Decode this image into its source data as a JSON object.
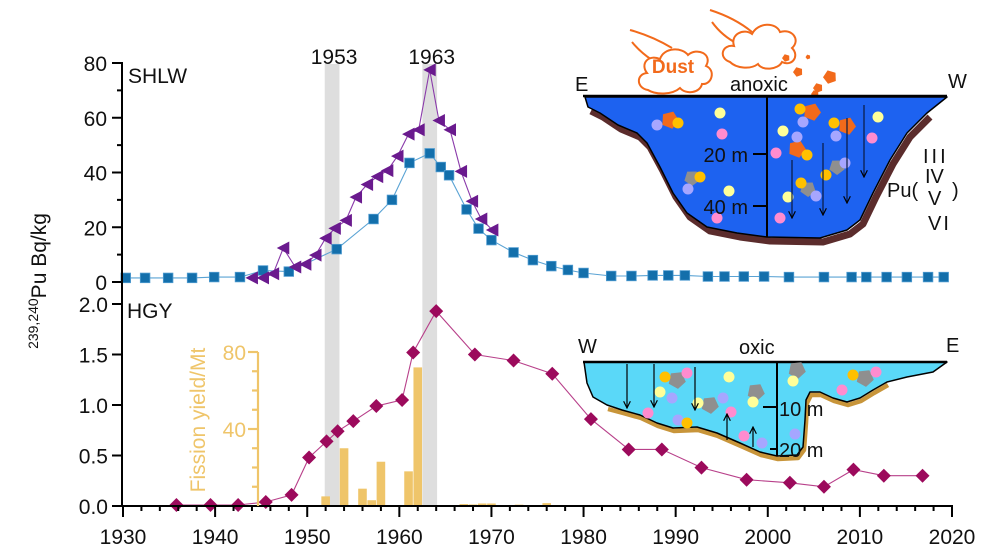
{
  "chart_data": [
    {
      "panel_label": "SHLW",
      "type": "line",
      "ylabel_sup": "239,240",
      "ylabel_main": "Pu Bq/kg",
      "xlim": [
        1930,
        2020
      ],
      "ylim": [
        0,
        80
      ],
      "yticks": [
        0,
        20,
        40,
        60,
        80
      ],
      "ytick_labels": [
        "0",
        "20",
        "40",
        "60",
        "80"
      ],
      "yminor": [
        10,
        30,
        50,
        70
      ],
      "grid": false,
      "bands": [
        {
          "label": "1953",
          "x_range": [
            1951.9,
            1953.5
          ],
          "color": "#dedede"
        },
        {
          "label": "1963",
          "x_range": [
            1962.5,
            1964.1
          ],
          "color": "#dedede"
        }
      ],
      "series": [
        {
          "name": "squares",
          "marker": "square",
          "color": "#136fab",
          "line_color": "#5aa3d4",
          "x": [
            1930.3,
            1932.4,
            1934.9,
            1937.5,
            1939.9,
            1942.7,
            1945.2,
            1948.0,
            1953.2,
            1957.2,
            1959.2,
            1961.1,
            1963.3,
            1964.5,
            1965.4,
            1967.3,
            1968.6,
            1970.0,
            1972.4,
            1974.5,
            1976.5,
            1978.3,
            1980.0,
            1983.0,
            1985.2,
            1987.5,
            1989.2,
            1991.0,
            1993.5,
            1995.3,
            1997.4,
            1999.6,
            2002.3,
            2006.1,
            2009.1,
            2010.7,
            2012.9,
            2015.1,
            2017.4,
            2019.1
          ],
          "y": [
            1.5,
            1.5,
            1.5,
            1.5,
            1.8,
            1.8,
            4.2,
            3.8,
            12,
            23,
            30,
            43.5,
            47,
            42,
            39,
            26.5,
            19.5,
            15.3,
            10.8,
            8,
            5.8,
            4.4,
            3.3,
            2.2,
            2.2,
            2.4,
            2.4,
            2.4,
            2.0,
            2.0,
            2.0,
            2.0,
            1.8,
            1.8,
            1.8,
            1.8,
            1.8,
            1.8,
            1.8,
            1.8
          ]
        },
        {
          "name": "triangles",
          "marker": "triangle-left",
          "color": "#6a1a8e",
          "line_color": "#8a3aaa",
          "x": [
            1944.0,
            1945.2,
            1946.3,
            1947.4,
            1948.7,
            1949.8,
            1950.9,
            1952.0,
            1953.0,
            1954.2,
            1955.3,
            1956.5,
            1957.6,
            1958.7,
            1959.8,
            1961.0,
            1962.1,
            1963.3,
            1964.3,
            1965.5,
            1966.7,
            1967.9,
            1968.9,
            1970.1
          ],
          "y": [
            1.5,
            1.5,
            3,
            12.4,
            5.5,
            6.5,
            9.8,
            16,
            19.6,
            22.5,
            31,
            35.6,
            38.5,
            40.7,
            46,
            54,
            55.6,
            77.5,
            59,
            55.6,
            40.4,
            29.5,
            23,
            19
          ]
        }
      ]
    },
    {
      "panel_label": "HGY",
      "type": "line",
      "xlim": [
        1930,
        2020
      ],
      "ylim": [
        0,
        2.0
      ],
      "xticks": [
        1930,
        1940,
        1950,
        1960,
        1970,
        1980,
        1990,
        2000,
        2010,
        2020
      ],
      "xtick_labels": [
        "1930",
        "1940",
        "1950",
        "1960",
        "1970",
        "1980",
        "1990",
        "2000",
        "2010",
        "2020"
      ],
      "xminor_step": 2,
      "yticks": [
        0,
        0.5,
        1.0,
        1.5,
        2.0
      ],
      "ytick_labels": [
        "0.0",
        "0.5",
        "1.0",
        "1.5",
        "2.0"
      ],
      "grid": false,
      "series": [
        {
          "name": "diamonds",
          "marker": "diamond",
          "color": "#9c0a5c",
          "line_color": "#b8408a",
          "x": [
            1935.8,
            1939.5,
            1942.5,
            1945.5,
            1948.3,
            1950.2,
            1952.1,
            1953.3,
            1955.0,
            1957.5,
            1960.3,
            1961.5,
            1964.0,
            1968.2,
            1972.4,
            1976.6,
            1980.8,
            1984.9,
            1988.5,
            1992.8,
            1997.7,
            2002.4,
            2006.1,
            2009.3,
            2012.6,
            2016.8
          ],
          "y": [
            0.01,
            0.01,
            0.01,
            0.04,
            0.11,
            0.48,
            0.64,
            0.74,
            0.84,
            0.99,
            1.05,
            1.52,
            1.93,
            1.5,
            1.44,
            1.31,
            0.86,
            0.56,
            0.56,
            0.38,
            0.26,
            0.23,
            0.19,
            0.36,
            0.3,
            0.3
          ]
        }
      ],
      "secondary_bars": {
        "type": "bar",
        "name": "Fission yield",
        "ylabel": "Fission yield/Mt",
        "ylim": [
          0,
          80
        ],
        "yticks": [
          40,
          80
        ],
        "ytick_labels": [
          "40",
          "80"
        ],
        "yminor_step": 10,
        "color": "#efc56a",
        "x": [
          1951,
          1952,
          1954,
          1955,
          1956,
          1957,
          1958,
          1961,
          1962,
          1966,
          1967,
          1968,
          1969,
          1970,
          1973,
          1976
        ],
        "y": [
          0.5,
          5,
          30,
          0.5,
          9,
          3,
          23,
          18,
          72,
          0.5,
          1,
          0.8,
          1.3,
          1.3,
          0.7,
          1.5
        ]
      }
    }
  ],
  "diagrams": {
    "anoxic_lake": {
      "left_label": "E",
      "center_label": "anoxic",
      "right_label": "W",
      "dust_label": "Dust",
      "depth_labels": [
        "20 m",
        "40 m"
      ],
      "water_color": "#1d62f0",
      "rim_color": "#5b2c2c"
    },
    "oxic_lake": {
      "left_label": "W",
      "center_label": "oxic",
      "right_label": "E",
      "depth_labels": [
        "10 m",
        "20 m"
      ],
      "water_color": "#5ad8f8",
      "sediment_color": "#c8953a"
    },
    "dust_color": "#f26a1b",
    "pu_legend": {
      "prefix": "Pu(",
      "suffix": ")",
      "states": [
        {
          "label": "III",
          "color": "#a6a6ff"
        },
        {
          "label": "IV",
          "color": "#ffc000"
        },
        {
          "label": "V",
          "color": "#ff8ccf"
        },
        {
          "label": "VI",
          "color": "#ffff99"
        }
      ]
    }
  }
}
